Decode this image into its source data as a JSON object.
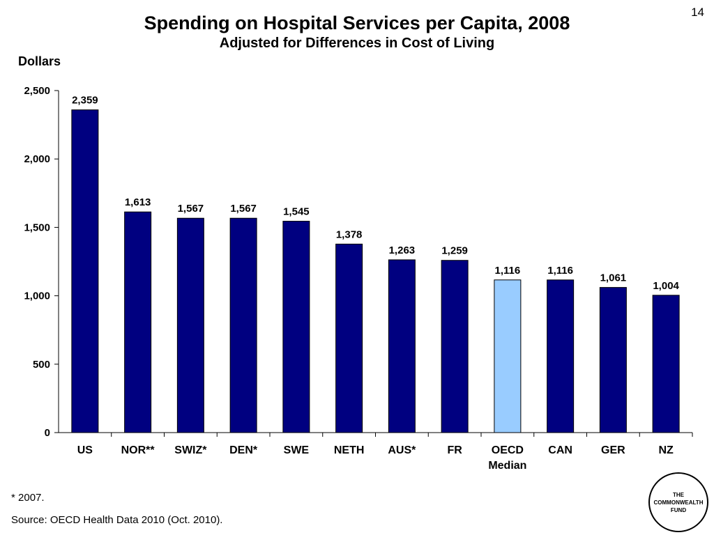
{
  "page_number": "14",
  "title": "Spending on Hospital Services per Capita, 2008",
  "subtitle": "Adjusted for Differences in Cost of Living",
  "unit_label": "Dollars",
  "footnote": "* 2007.",
  "source": "Source: OECD Health Data 2010 (Oct. 2010).",
  "logo_text": "THE\nCOMMONWEALTH\nFUND",
  "colors": {
    "bar": "#000080",
    "highlight": "#99CCFF",
    "axis": "#000000"
  },
  "chart_data": {
    "type": "bar",
    "title": "Spending on Hospital Services per Capita, 2008",
    "subtitle": "Adjusted for Differences in Cost of Living",
    "ylabel": "Dollars",
    "ylim": [
      0,
      2500
    ],
    "yticks": [
      0,
      500,
      1000,
      1500,
      2000,
      2500
    ],
    "ytick_labels": [
      "0",
      "500",
      "1,000",
      "1,500",
      "2,000",
      "2,500"
    ],
    "grid": false,
    "categories": [
      "US",
      "NOR**",
      "SWIZ*",
      "DEN*",
      "SWE",
      "NETH",
      "AUS*",
      "FR",
      "OECD Median",
      "CAN",
      "GER",
      "NZ"
    ],
    "values": [
      2359,
      1613,
      1567,
      1567,
      1545,
      1378,
      1263,
      1259,
      1116,
      1116,
      1061,
      1004
    ],
    "value_labels": [
      "2,359",
      "1,613",
      "1,567",
      "1,567",
      "1,545",
      "1,378",
      "1,263",
      "1,259",
      "1,116",
      "1,116",
      "1,061",
      "1,004"
    ],
    "highlight_category": "OECD Median"
  }
}
